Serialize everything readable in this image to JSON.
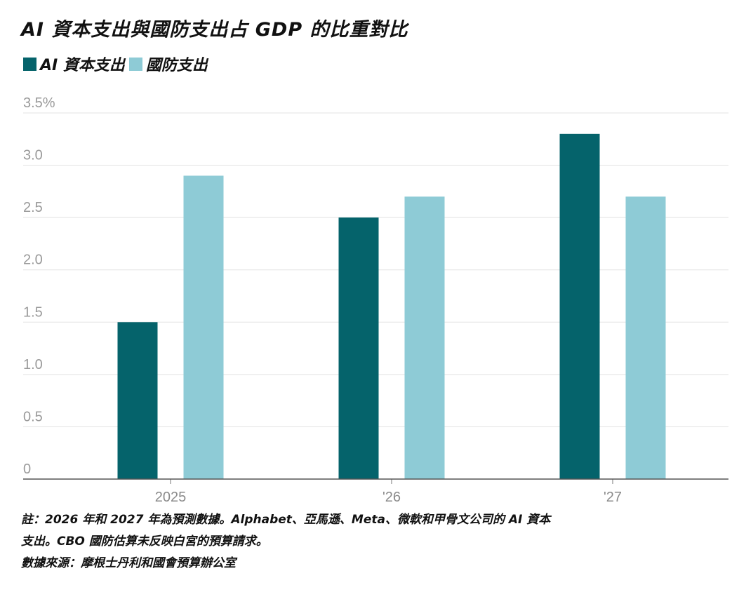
{
  "title": "AI 資本支出與國防支出占 GDP 的比重對比",
  "legend": [
    {
      "label": "AI 資本支出",
      "color": "#05636b"
    },
    {
      "label": "國防支出",
      "color": "#8ecbd6"
    }
  ],
  "notes": {
    "line1": "註：2026 年和 2027 年為預測數據。Alphabet、亞馬遜、Meta、微軟和甲骨文公司的 AI 資本",
    "line2": "支出。CBO 國防估算未反映白宮的預算請求。",
    "source": "數據來源：摩根士丹利和國會預算辦公室"
  },
  "chart_data": {
    "type": "bar",
    "title": "AI 資本支出與國防支出占 GDP 的比重對比",
    "categories": [
      "2025",
      "'26",
      "'27"
    ],
    "series": [
      {
        "name": "AI 資本支出",
        "values": [
          1.5,
          2.5,
          3.3
        ],
        "color": "#05636b"
      },
      {
        "name": "國防支出",
        "values": [
          2.9,
          2.7,
          2.7
        ],
        "color": "#8ecbd6"
      }
    ],
    "y_ticks": [
      "0",
      "0.5",
      "1.0",
      "1.5",
      "2.0",
      "2.5",
      "3.0",
      "3.5%"
    ],
    "ylim": [
      0,
      3.5
    ],
    "xlabel": "",
    "ylabel": "",
    "grid": true
  }
}
